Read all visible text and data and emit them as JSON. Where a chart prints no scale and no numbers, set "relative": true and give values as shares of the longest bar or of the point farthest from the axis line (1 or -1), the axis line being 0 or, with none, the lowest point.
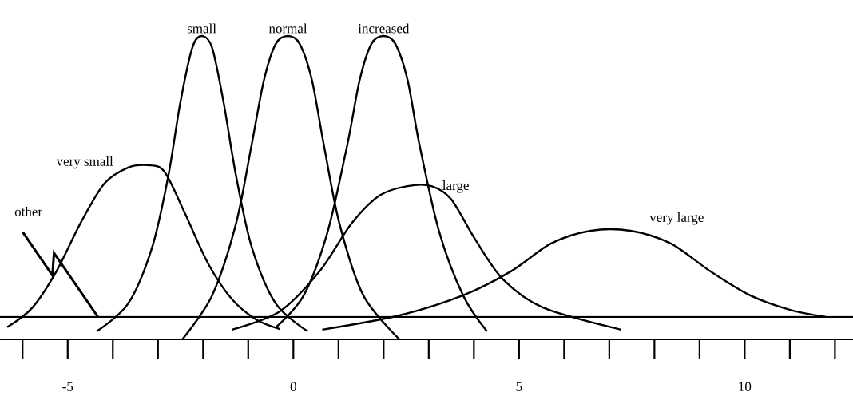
{
  "chart_data": {
    "type": "line",
    "relative": true,
    "xlim": [
      -6.5,
      12.4
    ],
    "xticks": [
      -5,
      0,
      5,
      10
    ],
    "series": [
      {
        "name": "very small",
        "color": "#000000",
        "x": [
          -6.34,
          -5.78,
          -5.25,
          -4.72,
          -4.19,
          -3.66,
          -3.22,
          -2.86,
          -2.42,
          -1.89,
          -1.36,
          -0.83,
          -0.3
        ],
        "values": [
          0.04,
          0.105,
          0.224,
          0.382,
          0.513,
          0.566,
          0.574,
          0.553,
          0.421,
          0.25,
          0.132,
          0.066,
          0.034
        ]
      },
      {
        "name": "small",
        "color": "#000000",
        "x": [
          -4.36,
          -3.66,
          -3.13,
          -2.77,
          -2.51,
          -2.24,
          -2.03,
          -1.8,
          -1.54,
          -1.27,
          -0.92,
          -0.39,
          0.32
        ],
        "values": [
          0.026,
          0.118,
          0.303,
          0.539,
          0.776,
          0.961,
          1.0,
          0.961,
          0.776,
          0.539,
          0.303,
          0.118,
          0.026
        ]
      },
      {
        "name": "normal",
        "color": "#000000",
        "x": [
          -2.46,
          -1.8,
          -1.27,
          -0.92,
          -0.65,
          -0.39,
          -0.12,
          0.14,
          0.41,
          0.67,
          1.02,
          1.55,
          2.35
        ],
        "values": [
          0.0,
          0.145,
          0.382,
          0.645,
          0.855,
          0.974,
          1.0,
          0.974,
          0.855,
          0.645,
          0.382,
          0.145,
          0.0
        ]
      },
      {
        "name": "increased",
        "color": "#000000",
        "x": [
          -0.39,
          0.23,
          0.76,
          1.2,
          1.47,
          1.73,
          2.0,
          2.26,
          2.53,
          2.79,
          3.23,
          3.76,
          4.29
        ],
        "values": [
          0.039,
          0.145,
          0.355,
          0.645,
          0.855,
          0.974,
          1.0,
          0.974,
          0.855,
          0.645,
          0.355,
          0.145,
          0.026
        ]
      },
      {
        "name": "large",
        "color": "#000000",
        "x": [
          -1.36,
          -0.3,
          0.58,
          1.29,
          1.91,
          2.53,
          3.06,
          3.5,
          4.03,
          4.65,
          5.53,
          7.26
        ],
        "values": [
          0.032,
          0.092,
          0.224,
          0.382,
          0.474,
          0.505,
          0.505,
          0.461,
          0.329,
          0.197,
          0.105,
          0.032
        ]
      },
      {
        "name": "very large",
        "color": "#000000",
        "x": [
          0.64,
          2.35,
          3.76,
          4.82,
          5.71,
          6.59,
          7.47,
          8.36,
          9.24,
          10.12,
          11.01,
          11.8
        ],
        "values": [
          0.032,
          0.079,
          0.145,
          0.224,
          0.316,
          0.358,
          0.358,
          0.316,
          0.224,
          0.145,
          0.097,
          0.074
        ]
      }
    ],
    "ref_lines": [
      {
        "axis": "y",
        "value": 0.074,
        "color": "#000000"
      }
    ],
    "annotations": [
      {
        "text": "other",
        "x": -4.33,
        "y": 0.074
      }
    ]
  }
}
